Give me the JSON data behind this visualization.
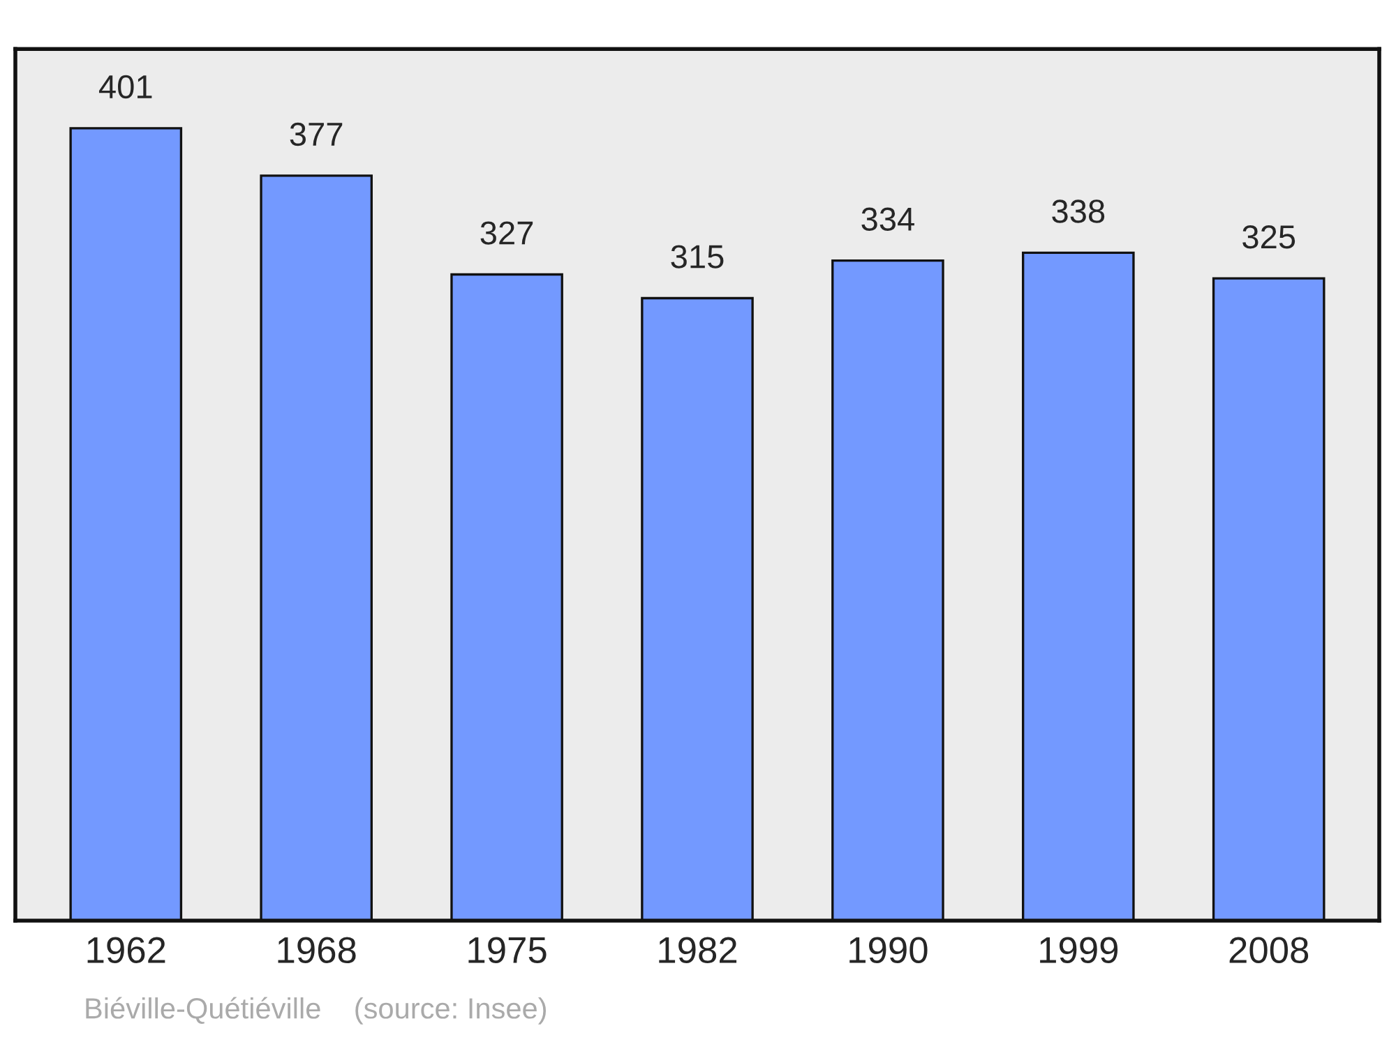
{
  "chart_data": {
    "type": "bar",
    "categories": [
      "1962",
      "1968",
      "1975",
      "1982",
      "1990",
      "1999",
      "2008"
    ],
    "values": [
      401,
      377,
      327,
      315,
      334,
      338,
      325
    ],
    "color": "#7399ff",
    "data_labels": true,
    "grid": false,
    "legend": false,
    "annotations": [
      "Biéville-Quétiéville",
      "(source: Insee)"
    ]
  }
}
